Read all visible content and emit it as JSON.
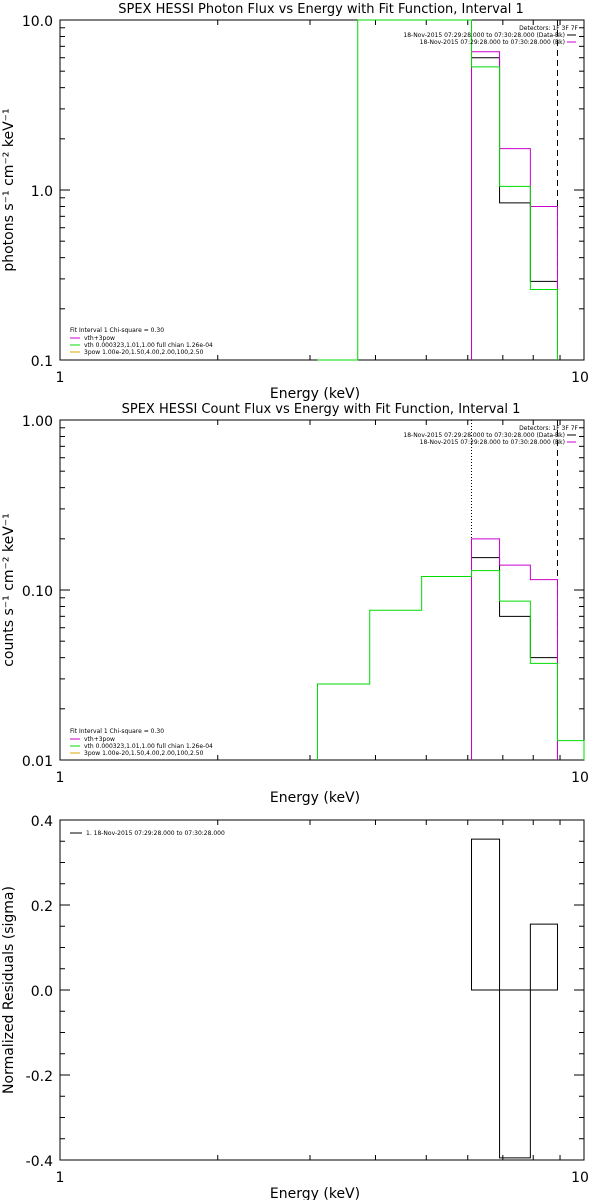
{
  "chart_data": [
    {
      "type": "line",
      "title": "SPEX HESSI Photon Flux vs Energy with Fit Function, Interval 1",
      "xlabel": "Energy (keV)",
      "ylabel": "photons s⁻¹ cm⁻² keV⁻¹",
      "xscale": "log",
      "yscale": "log",
      "xlim": [
        1,
        10
      ],
      "ylim": [
        0.1,
        10
      ],
      "xticks": [
        "1",
        "10"
      ],
      "yticks": [
        "0.1",
        "1.0",
        "10.0"
      ],
      "vlines": [
        {
          "x": 6.1,
          "style": "dotted"
        },
        {
          "x": 8.9,
          "style": "dashed"
        }
      ],
      "series": [
        {
          "name": "",
          "color": "#000000",
          "edges": [
            6.1,
            6.9,
            7.9,
            8.9
          ],
          "values": [
            6.0,
            0.84,
            0.29
          ]
        },
        {
          "name": "",
          "color": "#cc00cc",
          "edges": [
            6.1,
            6.9,
            7.9,
            8.9
          ],
          "values": [
            6.5,
            1.75,
            0.8
          ]
        },
        {
          "name": "",
          "color": "#00dd00",
          "edges": [
            3.1,
            3.7,
            4.3,
            5.0,
            5.4,
            6.1,
            6.9,
            7.9,
            8.9
          ],
          "values": [
            0.1,
            15,
            25,
            10,
            10,
            5.3,
            1.05,
            0.26
          ]
        }
      ],
      "legend_top": [
        "Detectors: 1F 3F 7F",
        "18-Nov-2015 07:29:28.000 to 07:30:28.000 (Data-Bk)",
        "18-Nov-2015 07:29:28.000 to 07:30:28.000 (Bk)"
      ],
      "legend_bottom": [
        {
          "text": "Fit Interval 1   Chi-square = 0.30",
          "color": ""
        },
        {
          "text": "vth+3pow",
          "color": "#cc00cc"
        },
        {
          "text": "vth 0.000323,1.01,1.00  full chian 1.26e-04",
          "color": "#00dd00"
        },
        {
          "text": "3pow 1.00e-20,1.50,4.00,2.00,100,2.50",
          "color": "#ddaa00"
        }
      ]
    },
    {
      "type": "line",
      "title": "SPEX HESSI Count Flux vs Energy with Fit Function, Interval 1",
      "xlabel": "Energy (keV)",
      "ylabel": "counts s⁻¹ cm⁻² keV⁻¹",
      "xscale": "log",
      "yscale": "log",
      "xlim": [
        1,
        10
      ],
      "ylim": [
        0.01,
        1
      ],
      "xticks": [
        "1",
        "10"
      ],
      "yticks": [
        "0.01",
        "0.10",
        "1.00"
      ],
      "vlines": [
        {
          "x": 6.1,
          "style": "dotted"
        },
        {
          "x": 8.9,
          "style": "dashed"
        }
      ],
      "series": [
        {
          "name": "",
          "color": "#000000",
          "edges": [
            6.1,
            6.9,
            7.9,
            8.9
          ],
          "values": [
            0.155,
            0.07,
            0.04
          ]
        },
        {
          "name": "",
          "color": "#cc00cc",
          "edges": [
            6.1,
            6.9,
            7.9,
            8.9
          ],
          "values": [
            0.2,
            0.14,
            0.115
          ]
        },
        {
          "name": "",
          "color": "#00dd00",
          "edges": [
            3.1,
            3.9,
            4.9,
            6.1,
            6.9,
            7.9,
            8.9,
            10
          ],
          "values": [
            0.028,
            0.076,
            0.12,
            0.13,
            0.086,
            0.037,
            0.013
          ]
        }
      ],
      "legend_top": [
        "Detectors: 1F 3F 7F",
        "18-Nov-2015 07:29:28.000 to 07:30:28.000 (Data-Bk)",
        "18-Nov-2015 07:29:28.000 to 07:30:28.000 (Bk)"
      ],
      "legend_bottom": [
        {
          "text": "Fit Interval 1   Chi-square = 0.30",
          "color": ""
        },
        {
          "text": "vth+3pow",
          "color": "#cc00cc"
        },
        {
          "text": "vth 0.000323,1.01,1.00  full chian 1.26e-04",
          "color": "#00dd00"
        },
        {
          "text": "3pow 1.00e-20,1.50,4.00,2.00,100,2.50",
          "color": "#ddaa00"
        }
      ]
    },
    {
      "type": "bar",
      "title": "",
      "xlabel": "Energy (keV)",
      "ylabel": "Normalized Residuals (sigma)",
      "xscale": "log",
      "yscale": "linear",
      "xlim": [
        1,
        10
      ],
      "ylim": [
        -0.4,
        0.4
      ],
      "xticks": [
        "1",
        "10"
      ],
      "yticks": [
        "-0.4",
        "-0.2",
        "0.0",
        "0.2",
        "0.4"
      ],
      "series": [
        {
          "name": "1. 18-Nov-2015 07:29:28.000 to 07:30:28.000",
          "color": "#000000",
          "edges": [
            6.1,
            6.9,
            7.9,
            8.9
          ],
          "values": [
            0.355,
            -0.395,
            0.155
          ]
        }
      ]
    }
  ]
}
